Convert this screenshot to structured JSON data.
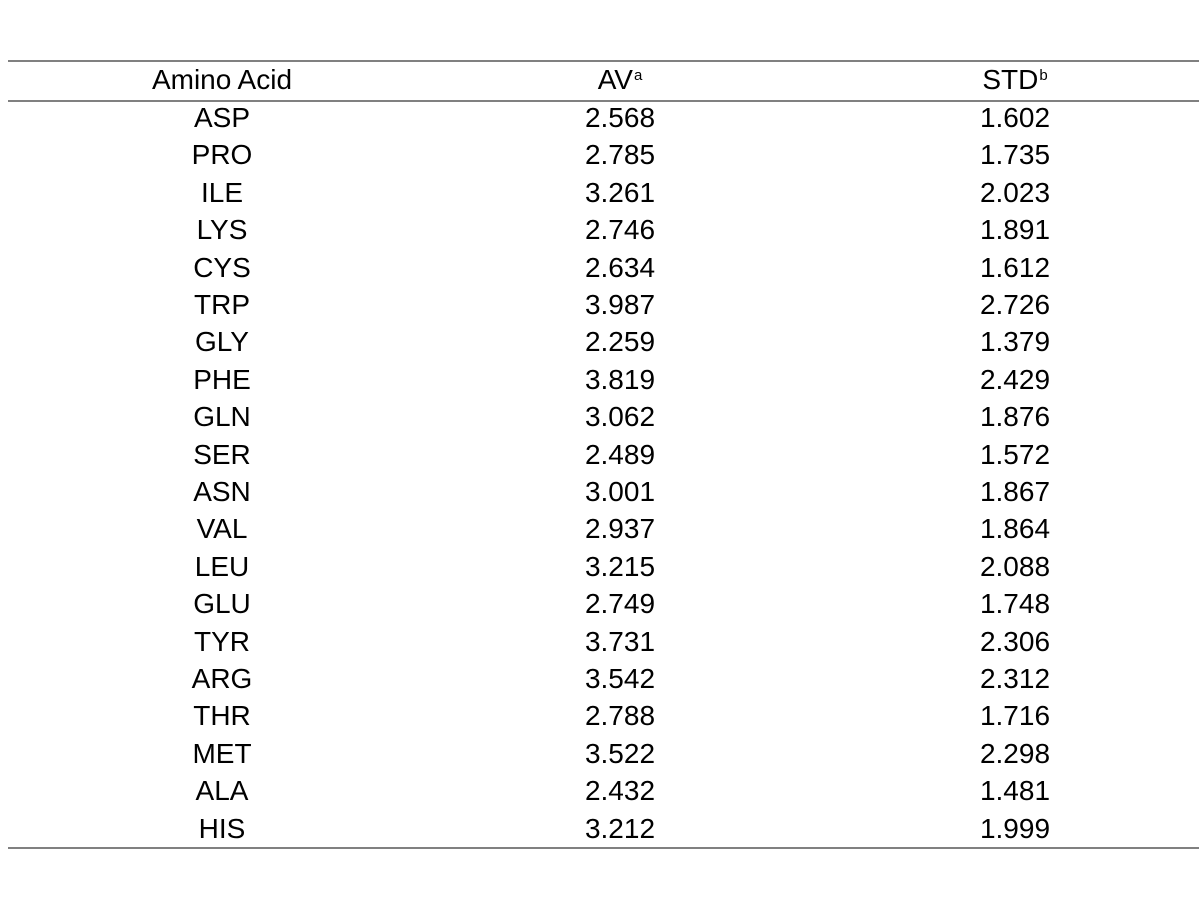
{
  "table": {
    "headers": [
      {
        "text": "Amino Acid",
        "sup": ""
      },
      {
        "text": "AV",
        "sup": "a"
      },
      {
        "text": "STD",
        "sup": "b"
      }
    ],
    "rows": [
      [
        "ASP",
        "2.568",
        "1.602"
      ],
      [
        "PRO",
        "2.785",
        "1.735"
      ],
      [
        "ILE",
        "3.261",
        "2.023"
      ],
      [
        "LYS",
        "2.746",
        "1.891"
      ],
      [
        "CYS",
        "2.634",
        "1.612"
      ],
      [
        "TRP",
        "3.987",
        "2.726"
      ],
      [
        "GLY",
        "2.259",
        "1.379"
      ],
      [
        "PHE",
        "3.819",
        "2.429"
      ],
      [
        "GLN",
        "3.062",
        "1.876"
      ],
      [
        "SER",
        "2.489",
        "1.572"
      ],
      [
        "ASN",
        "3.001",
        "1.867"
      ],
      [
        "VAL",
        "2.937",
        "1.864"
      ],
      [
        "LEU",
        "3.215",
        "2.088"
      ],
      [
        "GLU",
        "2.749",
        "1.748"
      ],
      [
        "TYR",
        "3.731",
        "2.306"
      ],
      [
        "ARG",
        "3.542",
        "2.312"
      ],
      [
        "THR",
        "2.788",
        "1.716"
      ],
      [
        "MET",
        "3.522",
        "2.298"
      ],
      [
        "ALA",
        "2.432",
        "1.481"
      ],
      [
        "HIS",
        "3.212",
        "1.999"
      ]
    ]
  }
}
